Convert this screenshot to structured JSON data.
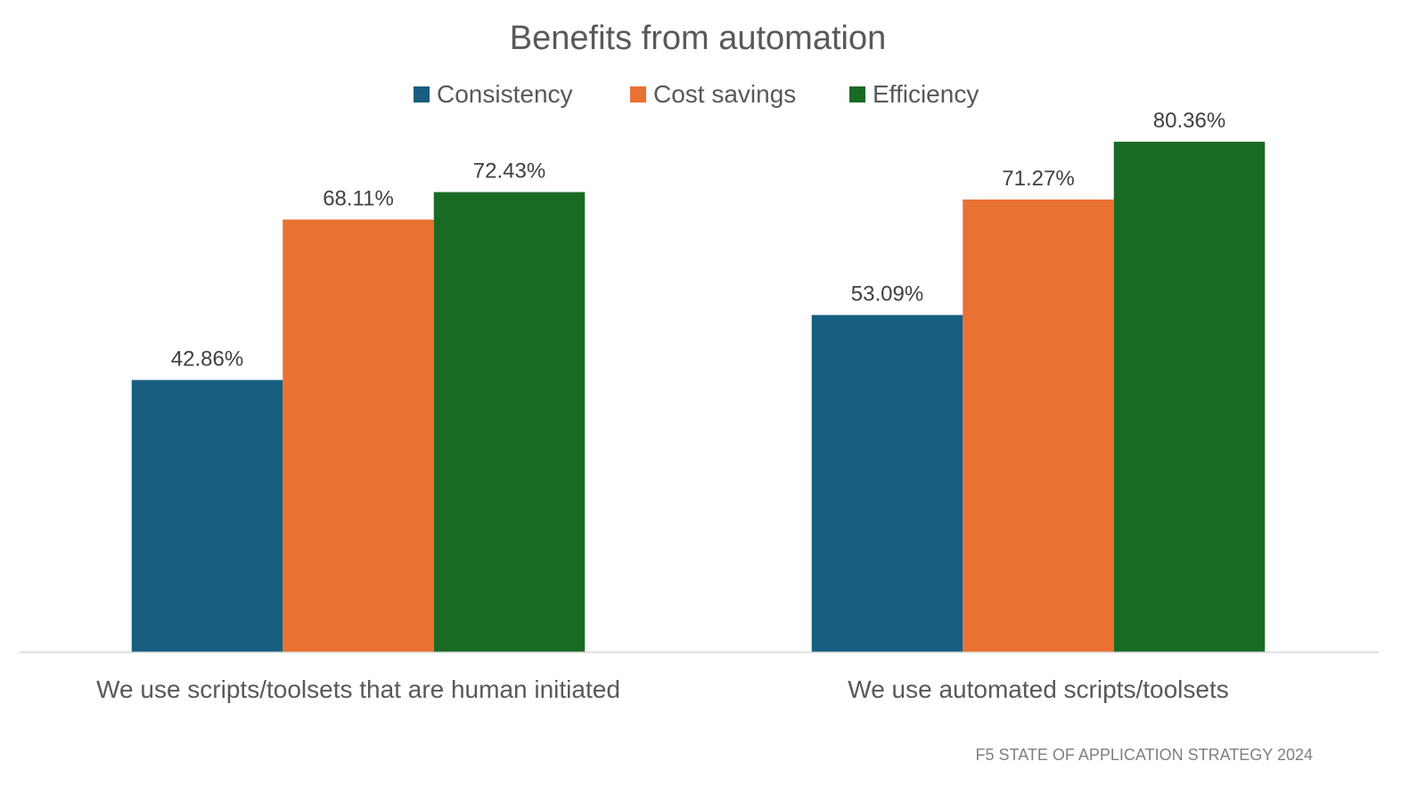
{
  "chart_data": {
    "type": "bar",
    "title": "Benefits from automation",
    "categories": [
      "We use scripts/toolsets that are human initiated",
      "We use automated scripts/toolsets"
    ],
    "series": [
      {
        "name": "Consistency",
        "values": [
          42.86,
          53.09
        ],
        "labels": [
          "42.86%",
          "53.09%"
        ],
        "color": "#175E81"
      },
      {
        "name": "Cost savings",
        "values": [
          68.11,
          71.27
        ],
        "labels": [
          "68.11%",
          "71.27%"
        ],
        "color": "#E97132"
      },
      {
        "name": "Efficiency",
        "values": [
          72.43,
          80.36
        ],
        "labels": [
          "72.43%",
          "80.36%"
        ],
        "color": "#196B24"
      }
    ],
    "xlabel": "",
    "ylabel": "",
    "ylim": [
      0,
      100
    ],
    "grid": false,
    "legend": "top",
    "y_axis_visible": false,
    "data_labels": true
  },
  "source": "F5 STATE OF APPLICATION STRATEGY 2024"
}
